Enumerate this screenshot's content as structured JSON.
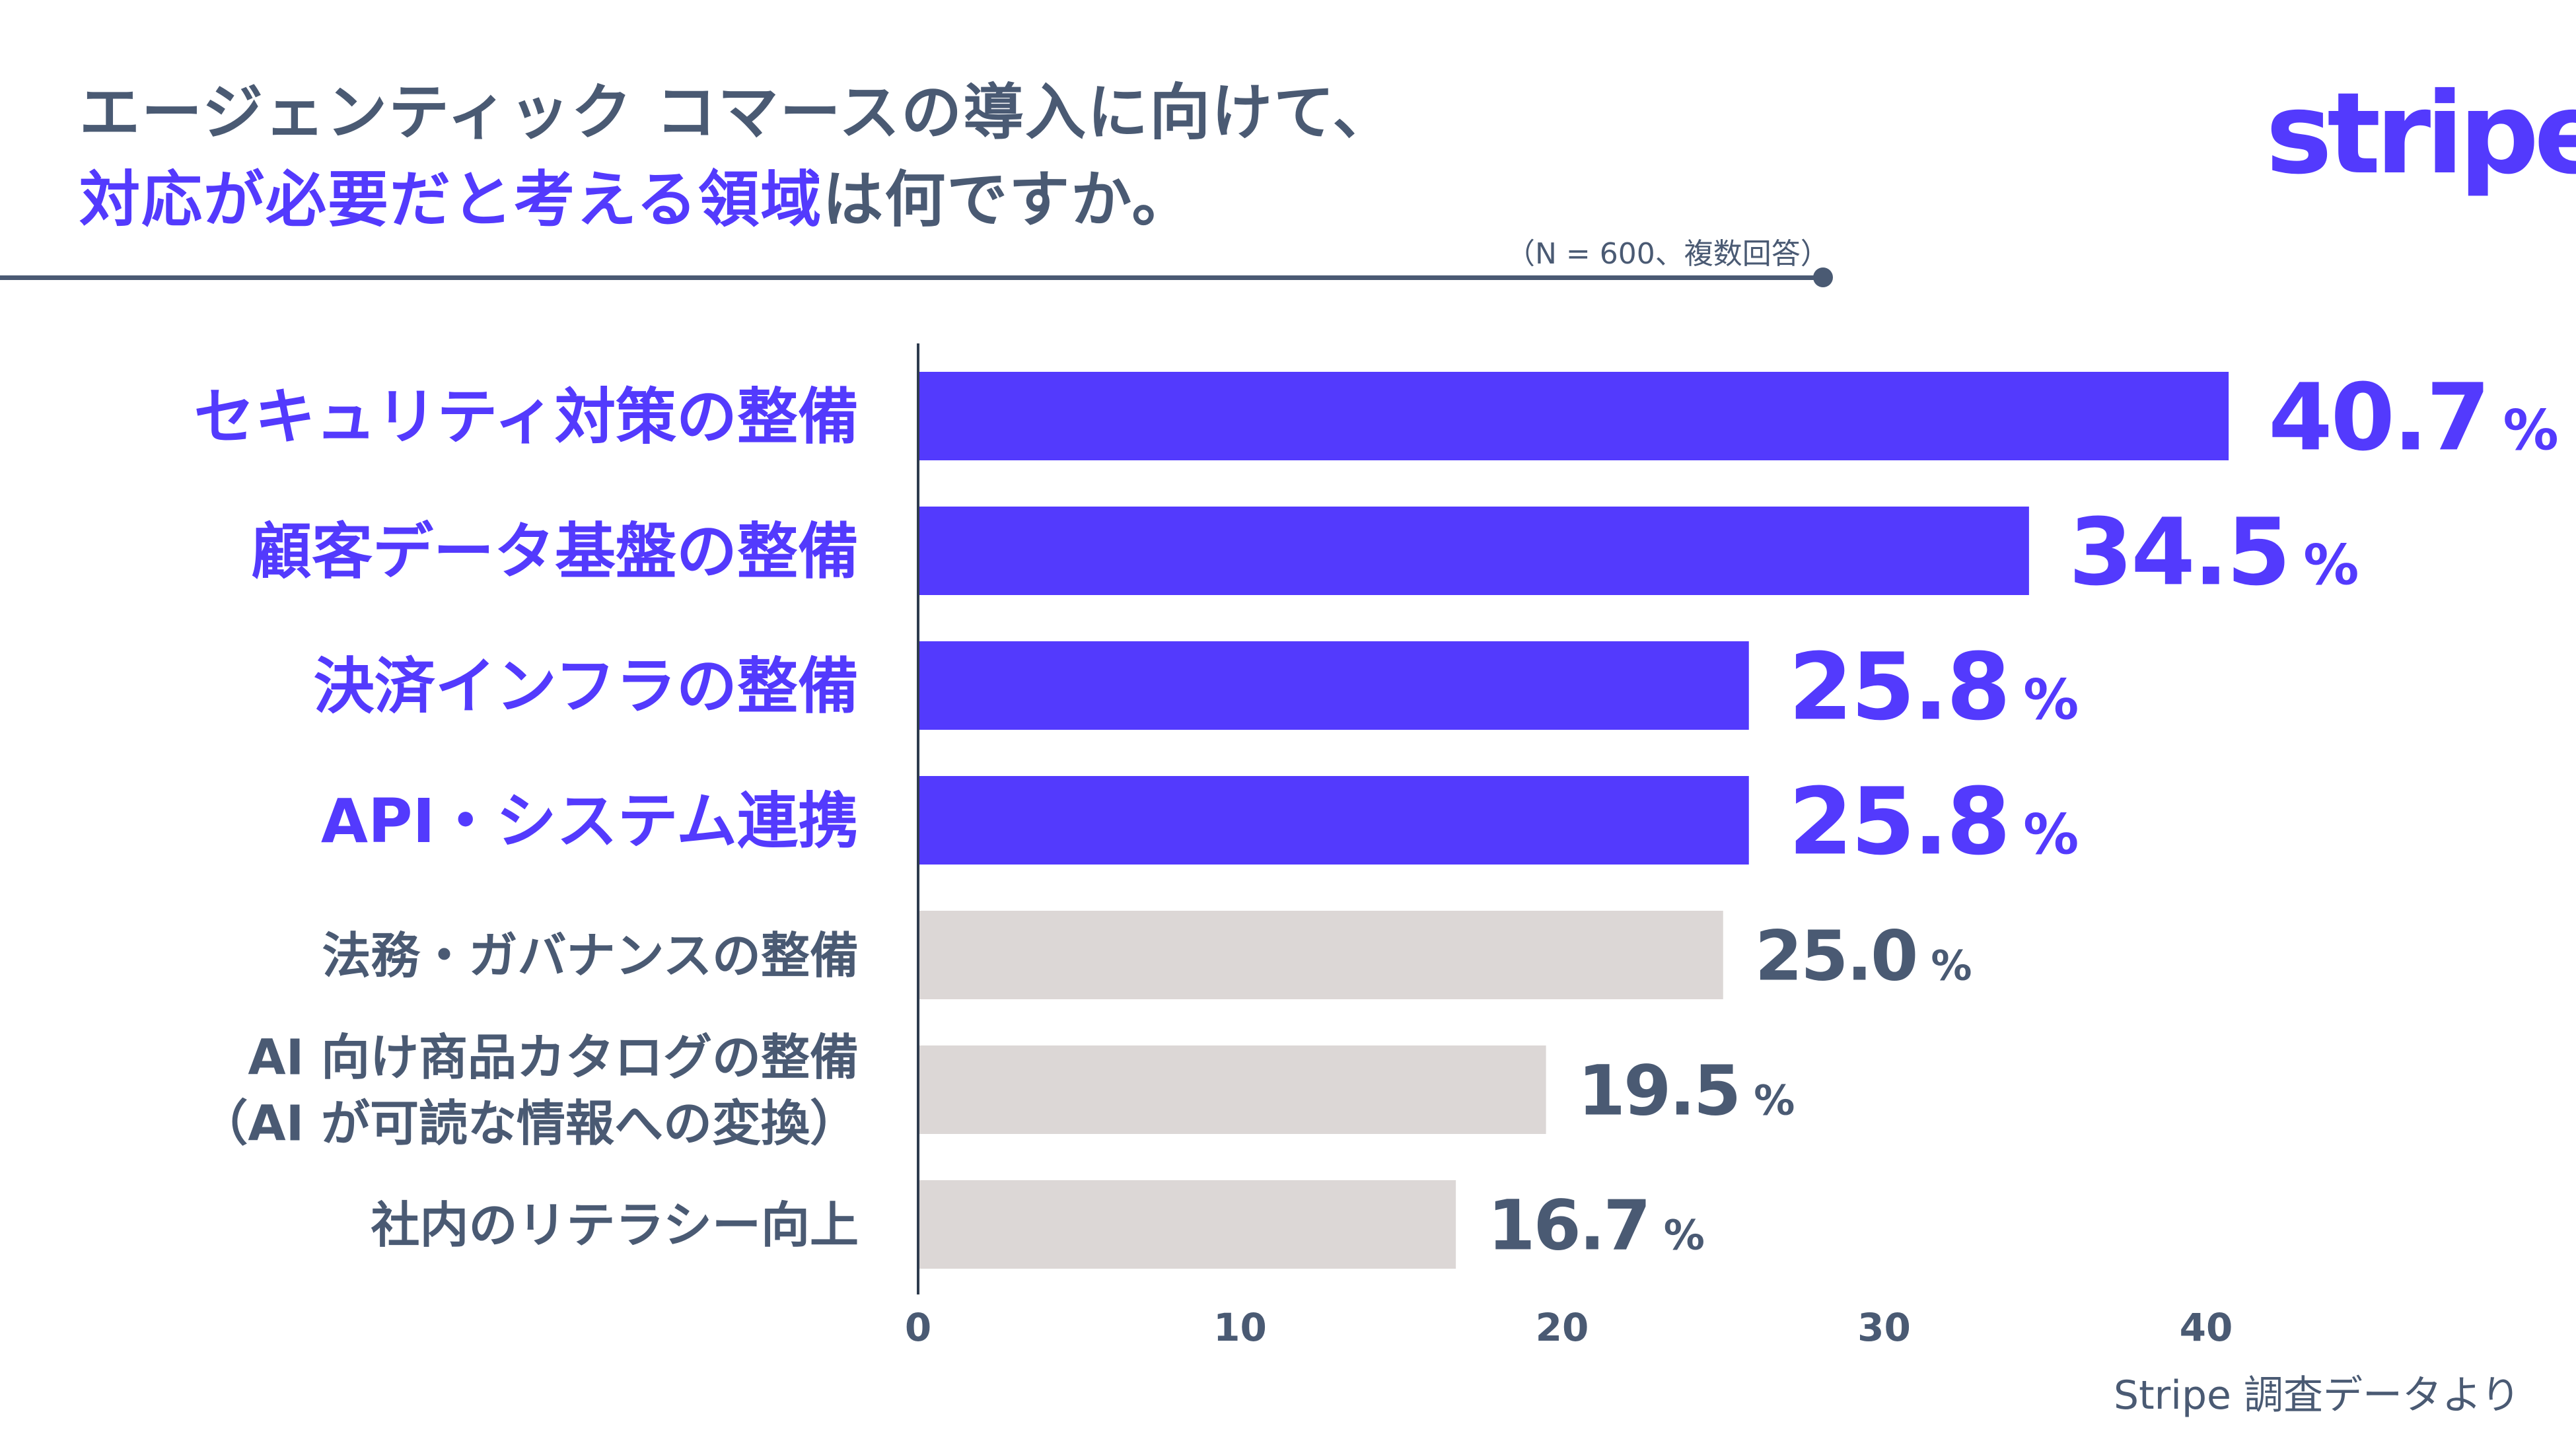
{
  "title": {
    "line1": "エージェンティック コマースの導入に向けて、",
    "line2_highlight": "対応が必要だと考える領域",
    "line2_rest": "は何ですか。"
  },
  "logo": "stripe",
  "sample_note": "（N = 600、複数回答）",
  "source": "Stripe 調査データより",
  "colors": {
    "highlight": "#533afd",
    "muted_bar": "#dcd7d6",
    "text": "#4a5a73"
  },
  "chart_data": {
    "type": "bar",
    "orientation": "horizontal",
    "categories": [
      [
        "セキュリティ対策の整備"
      ],
      [
        "顧客データ基盤の整備"
      ],
      [
        "決済インフラの整備"
      ],
      [
        "API・システム連携"
      ],
      [
        "法務・ガバナンスの整備"
      ],
      [
        "AI 向け商品カタログの整備",
        "（AI が可読な情報への変換）"
      ],
      [
        "社内のリテラシー向上"
      ]
    ],
    "values": [
      40.7,
      34.5,
      25.8,
      25.8,
      25.0,
      19.5,
      16.7
    ],
    "value_labels": [
      "40.7",
      "34.5",
      "25.8",
      "25.8",
      "25.0",
      "19.5",
      "16.7"
    ],
    "unit": "%",
    "highlighted": [
      true,
      true,
      true,
      true,
      false,
      false,
      false
    ],
    "xlim": [
      0,
      40
    ],
    "xticks": [
      "0",
      "10",
      "20",
      "30",
      "40"
    ],
    "grid": false
  }
}
